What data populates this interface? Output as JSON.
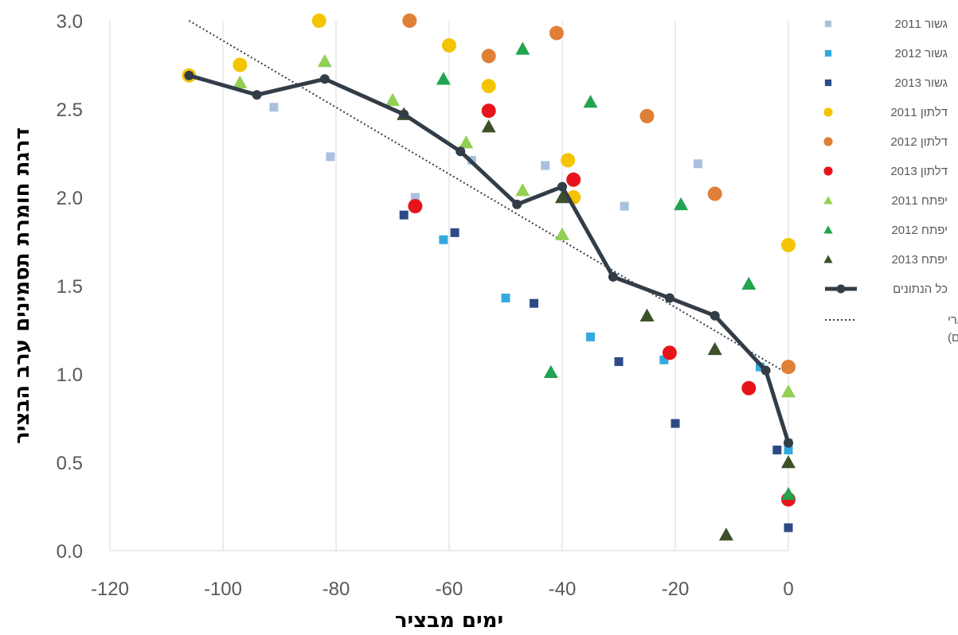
{
  "chart_data": {
    "type": "scatter",
    "title": "",
    "xlabel": "ימים מבציר",
    "ylabel": "דרגת חומרת תסמינים ערב הבציר",
    "xlim": [
      -120,
      0
    ],
    "ylim": [
      0,
      3
    ],
    "x_ticks": [
      -120,
      -100,
      -80,
      -60,
      -40,
      -20,
      0
    ],
    "y_ticks": [
      0.0,
      0.5,
      1.0,
      1.5,
      2.0,
      2.5,
      3.0
    ],
    "x_tick_labels": [
      "-120",
      "-100",
      "-80",
      "-60",
      "-40",
      "-20",
      "0"
    ],
    "y_tick_labels": [
      "0.0",
      "0.5",
      "1.0",
      "1.5",
      "2.0",
      "2.5",
      "3.0"
    ],
    "grid": "vertical",
    "legend_position": "right",
    "series": [
      {
        "name": "גשור 2011",
        "marker": "square",
        "color": "#a9c1de",
        "x": [
          -91,
          -81,
          -66,
          -56,
          -43,
          -29,
          -16,
          0
        ],
        "y": [
          2.51,
          2.23,
          2.0,
          2.21,
          2.18,
          1.95,
          2.19,
          0.61
        ]
      },
      {
        "name": "גשור 2012",
        "marker": "square",
        "color": "#33a9e0",
        "x": [
          -61,
          -50,
          -35,
          -22,
          -5,
          0
        ],
        "y": [
          1.76,
          1.43,
          1.21,
          1.08,
          1.04,
          0.57
        ]
      },
      {
        "name": "גשור 2013",
        "marker": "square",
        "color": "#2e4a86",
        "x": [
          -68,
          -59,
          -45,
          -30,
          -20,
          -2,
          0
        ],
        "y": [
          1.9,
          1.8,
          1.4,
          1.07,
          0.72,
          0.57,
          0.13
        ]
      },
      {
        "name": "דלתון 2011",
        "marker": "circle",
        "color": "#f5c400",
        "x": [
          -106,
          -97,
          -83,
          -60,
          -53,
          -39,
          -38,
          0
        ],
        "y": [
          2.69,
          2.75,
          3.0,
          2.86,
          2.63,
          2.21,
          2.0,
          1.73
        ]
      },
      {
        "name": "דלתון 2012",
        "marker": "circle",
        "color": "#e07f36",
        "x": [
          -67,
          -53,
          -41,
          -25,
          -13,
          0
        ],
        "y": [
          3.0,
          2.8,
          2.93,
          2.46,
          2.02,
          1.04
        ]
      },
      {
        "name": "דלתון 2013",
        "marker": "circle",
        "color": "#e8141b",
        "x": [
          -66,
          -53,
          -38,
          -21,
          -7,
          0
        ],
        "y": [
          1.95,
          2.49,
          2.1,
          1.12,
          0.92,
          0.29
        ]
      },
      {
        "name": "יפתח 2011",
        "marker": "triangle",
        "color": "#92cf55",
        "x": [
          -97,
          -82,
          -70,
          -57,
          -47,
          -40,
          0
        ],
        "y": [
          2.65,
          2.77,
          2.55,
          2.31,
          2.04,
          1.79,
          0.9
        ]
      },
      {
        "name": "יפתח 2012",
        "marker": "triangle",
        "color": "#21a350",
        "x": [
          -61,
          -47,
          -35,
          -19,
          -7,
          -42,
          0
        ],
        "y": [
          2.67,
          2.84,
          2.54,
          1.96,
          1.51,
          1.01,
          0.32
        ]
      },
      {
        "name": "יפתח 2013",
        "marker": "triangle",
        "color": "#3c5128",
        "x": [
          -68,
          -53,
          -40,
          -25,
          -13,
          -11,
          0
        ],
        "y": [
          2.47,
          2.4,
          2.0,
          1.33,
          1.14,
          0.09,
          0.5
        ]
      }
    ],
    "mean_line": {
      "name": "כל הנתונים",
      "color": "#333d48",
      "x": [
        -106,
        -94,
        -82,
        -68,
        -58,
        -48,
        -40,
        -31,
        -21,
        -13,
        -4,
        0
      ],
      "y": [
        2.69,
        2.58,
        2.67,
        2.47,
        2.26,
        1.96,
        2.06,
        1.55,
        1.43,
        1.33,
        1.02,
        0.61
      ]
    },
    "trend_line": {
      "name": "ליניארי (כל הנתונים)",
      "color": "#333d48",
      "x": [
        -106,
        0
      ],
      "y": [
        3.0,
        1.0
      ]
    }
  }
}
